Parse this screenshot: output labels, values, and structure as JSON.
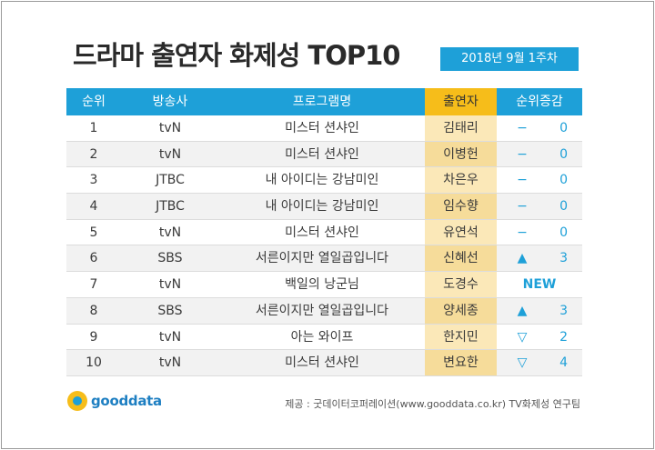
{
  "title": "드라마 출연자 화제성 TOP10",
  "week": "2018년  9월 1주차",
  "headers": {
    "rank": "순위",
    "channel": "방송사",
    "program": "프로그램명",
    "cast": "출연자",
    "change": "순위증감"
  },
  "rows": [
    {
      "rank": "1",
      "channel": "tvN",
      "program": "미스터 션샤인",
      "cast": "김태리",
      "symbol": "−",
      "change": "0"
    },
    {
      "rank": "2",
      "channel": "tvN",
      "program": "미스터 션샤인",
      "cast": "이병헌",
      "symbol": "−",
      "change": "0"
    },
    {
      "rank": "3",
      "channel": "JTBC",
      "program": "내 아이디는 강남미인",
      "cast": "차은우",
      "symbol": "−",
      "change": "0"
    },
    {
      "rank": "4",
      "channel": "JTBC",
      "program": "내 아이디는 강남미인",
      "cast": "임수향",
      "symbol": "−",
      "change": "0"
    },
    {
      "rank": "5",
      "channel": "tvN",
      "program": "미스터 션샤인",
      "cast": "유연석",
      "symbol": "−",
      "change": "0"
    },
    {
      "rank": "6",
      "channel": "SBS",
      "program": "서른이지만 열일곱입니다",
      "cast": "신혜선",
      "symbol": "▲",
      "change": "3"
    },
    {
      "rank": "7",
      "channel": "tvN",
      "program": "백일의 낭군님",
      "cast": "도경수",
      "badge": "NEW"
    },
    {
      "rank": "8",
      "channel": "SBS",
      "program": "서른이지만 열일곱입니다",
      "cast": "양세종",
      "symbol": "▲",
      "change": "3"
    },
    {
      "rank": "9",
      "channel": "tvN",
      "program": "아는 와이프",
      "cast": "한지민",
      "symbol": "▽",
      "change": "2"
    },
    {
      "rank": "10",
      "channel": "tvN",
      "program": "미스터 션샤인",
      "cast": "변요한",
      "symbol": "▽",
      "change": "4"
    }
  ],
  "logo": "gooddata",
  "source": "제공 : 굿데이터코퍼레이션(www.gooddata.co.kr) TV화제성 연구팀",
  "colors": {
    "accent": "#1ea0d8",
    "highlight": "#f6bd1a"
  }
}
